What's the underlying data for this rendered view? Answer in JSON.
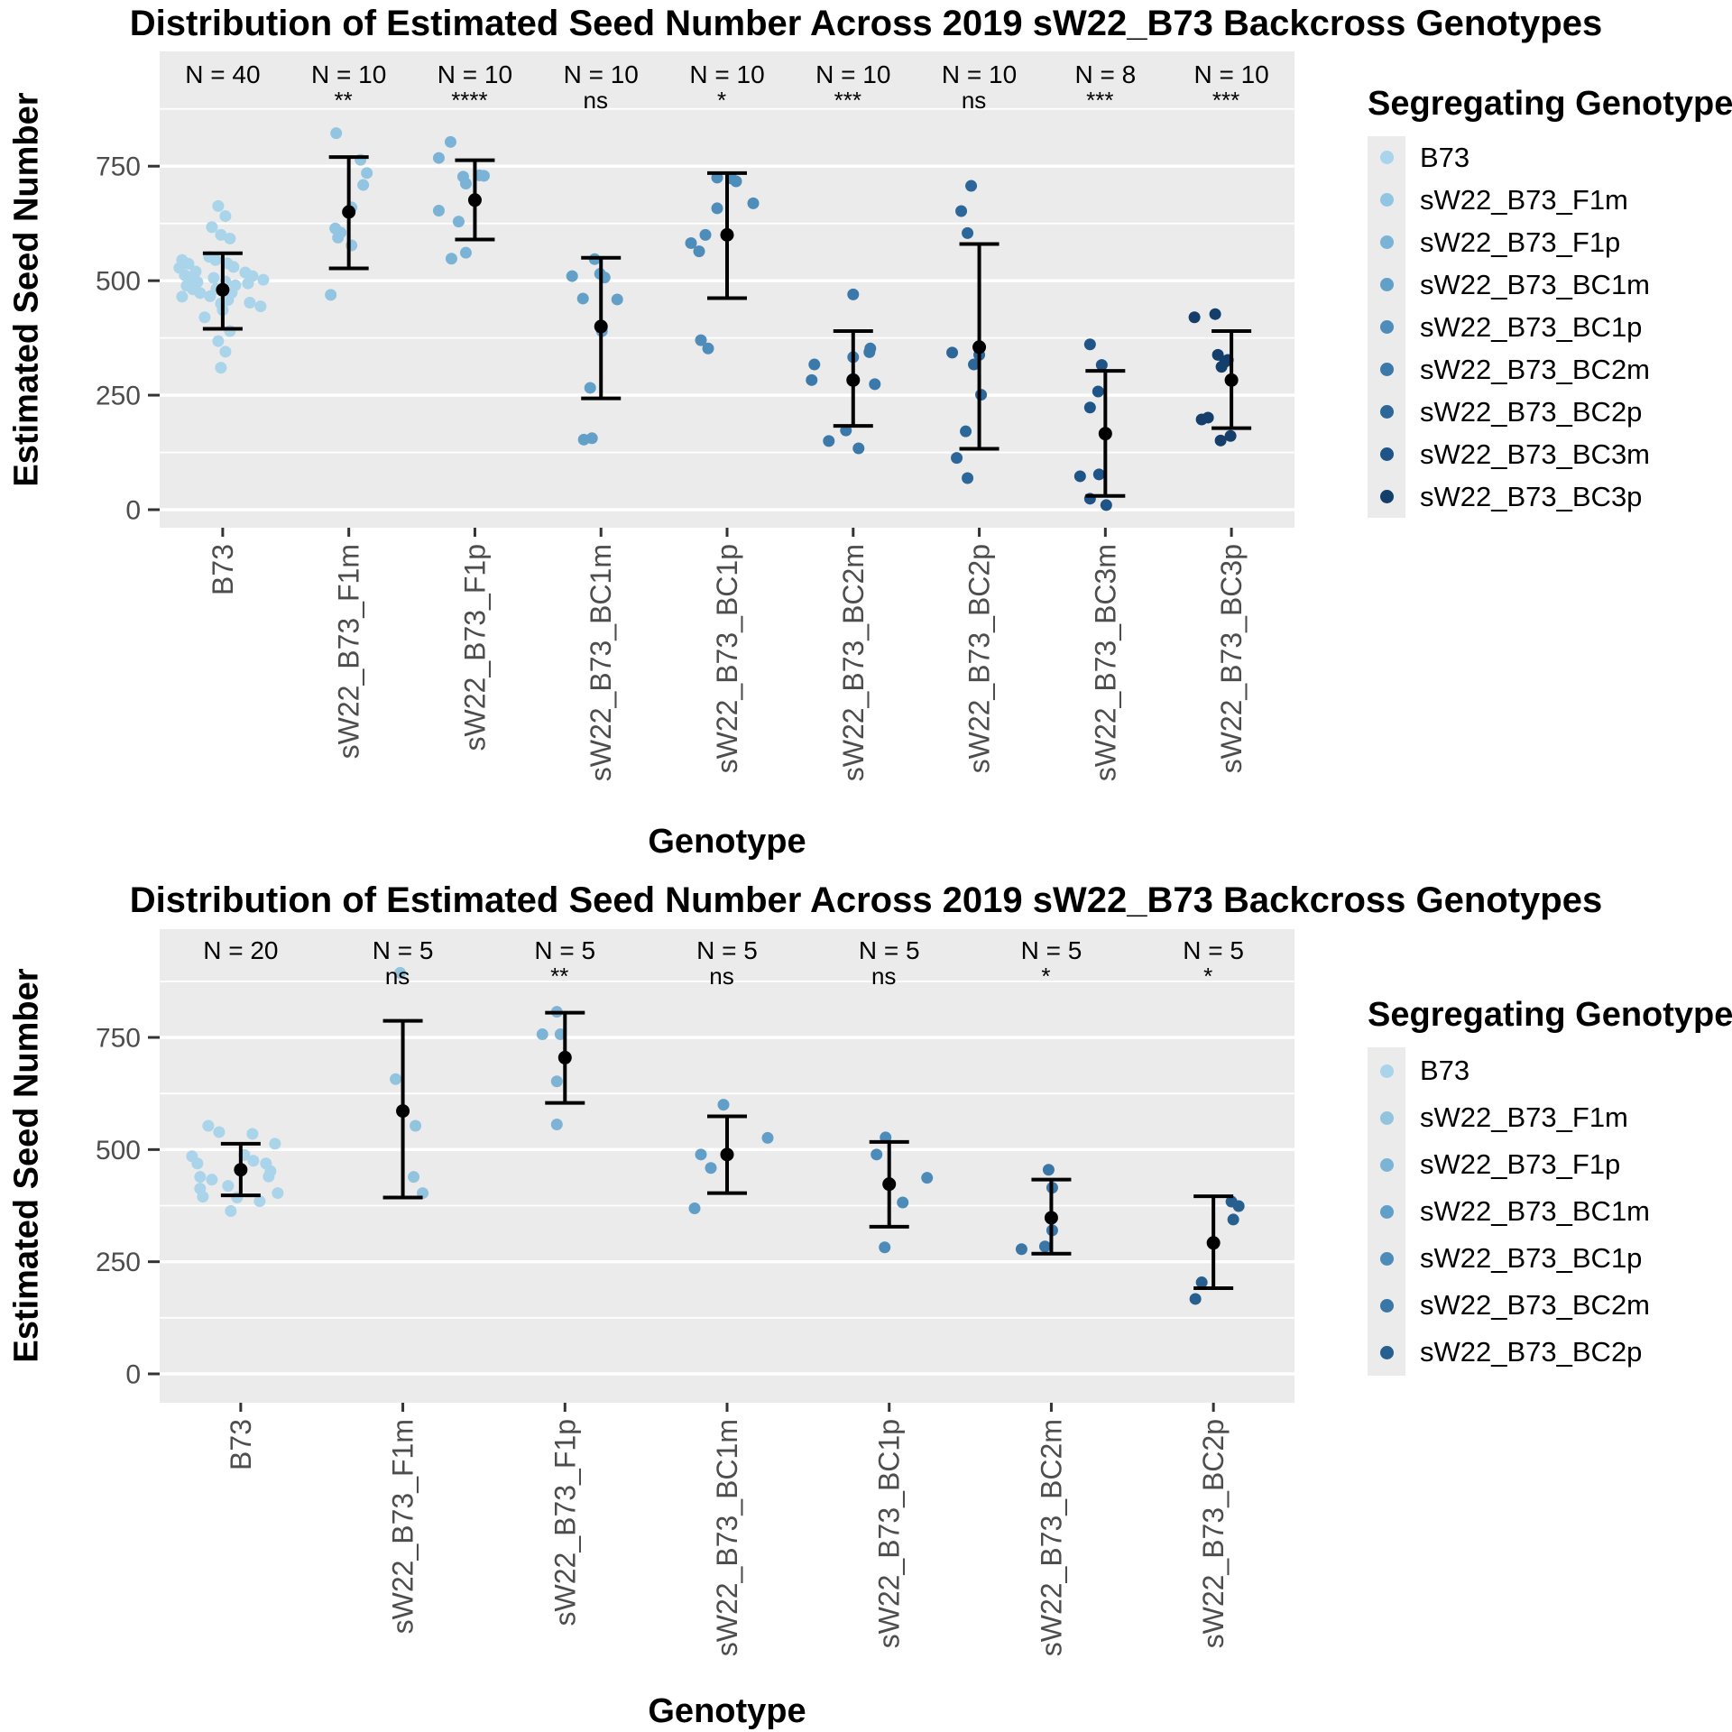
{
  "style": {
    "panel_background": "#EBEBEB",
    "grid_color": "#FFFFFF",
    "axis_text_color": "#4D4D4D",
    "error_bar_color": "#000000",
    "tick_color": "#333333"
  },
  "chart_data": [
    {
      "type": "scatter",
      "title": "Distribution of Estimated Seed Number Across 2019 sW22_B73 Backcross Genotypes",
      "xlabel": "Genotype",
      "ylabel": "Estimated Seed Number",
      "legend_title": "Segregating Genotype",
      "legend_position": "right",
      "grid": true,
      "y_ticks": [
        0,
        250,
        500,
        750
      ],
      "y_minor_ticks": [
        125,
        375,
        625,
        875
      ],
      "ylim": [
        -39,
        1000
      ],
      "categories": [
        "B73",
        "sW22_B73_F1m",
        "sW22_B73_F1p",
        "sW22_B73_BC1m",
        "sW22_B73_BC1p",
        "sW22_B73_BC2m",
        "sW22_B73_BC2p",
        "sW22_B73_BC3m",
        "sW22_B73_BC3p"
      ],
      "groups": [
        {
          "genotype": "B73",
          "color": "#A9D4EA",
          "n": 40,
          "n_label": "N = 40",
          "significance": "",
          "mean": 480,
          "upper": 560,
          "lower": 395,
          "points": [
            [
              -5,
              663
            ],
            [
              3,
              641
            ],
            [
              -12,
              617
            ],
            [
              -2,
              600
            ],
            [
              8,
              592
            ],
            [
              -15,
              552
            ],
            [
              -45,
              545
            ],
            [
              -8,
              545
            ],
            [
              -38,
              537
            ],
            [
              5,
              538
            ],
            [
              -48,
              528
            ],
            [
              12,
              530
            ],
            [
              -30,
              520
            ],
            [
              25,
              518
            ],
            [
              -42,
              512
            ],
            [
              33,
              510
            ],
            [
              -35,
              505
            ],
            [
              45,
              502
            ],
            [
              -28,
              497
            ],
            [
              28,
              494
            ],
            [
              -40,
              489
            ],
            [
              14,
              490
            ],
            [
              -33,
              481
            ],
            [
              10,
              474
            ],
            [
              -25,
              473
            ],
            [
              -7,
              482
            ],
            [
              -45,
              465
            ],
            [
              -14,
              466
            ],
            [
              6,
              458
            ],
            [
              -2,
              450
            ],
            [
              30,
              452
            ],
            [
              42,
              444
            ],
            [
              -10,
              506
            ],
            [
              3,
              498
            ],
            [
              0,
              436
            ],
            [
              -20,
              420
            ],
            [
              8,
              390
            ],
            [
              -5,
              368
            ],
            [
              3,
              345
            ],
            [
              -2,
              310
            ]
          ]
        },
        {
          "genotype": "sW22_B73_F1m",
          "color": "#92C5E1",
          "n": 10,
          "n_label": "N = 10",
          "significance": "**",
          "mean": 650,
          "upper": 770,
          "lower": 527,
          "points": [
            [
              -14,
              822
            ],
            [
              13,
              764
            ],
            [
              20,
              735
            ],
            [
              16,
              709
            ],
            [
              3,
              660
            ],
            [
              -15,
              614
            ],
            [
              -9,
              605
            ],
            [
              -12,
              594
            ],
            [
              3,
              577
            ],
            [
              -20,
              469
            ]
          ]
        },
        {
          "genotype": "sW22_B73_F1p",
          "color": "#7AB3D5",
          "n": 10,
          "n_label": "N = 10",
          "significance": "****",
          "mean": 676,
          "upper": 763,
          "lower": 590,
          "points": [
            [
              -27,
              803
            ],
            [
              -40,
              768
            ],
            [
              5,
              730
            ],
            [
              10,
              729
            ],
            [
              -13,
              727
            ],
            [
              -10,
              712
            ],
            [
              -40,
              653
            ],
            [
              -18,
              629
            ],
            [
              -10,
              561
            ],
            [
              -26,
              548
            ]
          ]
        },
        {
          "genotype": "sW22_B73_BC1m",
          "color": "#63A0C8",
          "n": 10,
          "n_label": "N = 10",
          "significance": "ns",
          "mean": 400,
          "upper": 550,
          "lower": 243,
          "points": [
            [
              -7,
              547
            ],
            [
              -1,
              515
            ],
            [
              -32,
              510
            ],
            [
              4,
              507
            ],
            [
              -20,
              461
            ],
            [
              18,
              459
            ],
            [
              1,
              390
            ],
            [
              -12,
              266
            ],
            [
              -10,
              156
            ],
            [
              -19,
              153
            ]
          ]
        },
        {
          "genotype": "sW22_B73_BC1p",
          "color": "#4E8CBA",
          "n": 10,
          "n_label": "N = 10",
          "significance": "*",
          "mean": 600,
          "upper": 735,
          "lower": 462,
          "points": [
            [
              -11,
              725
            ],
            [
              5,
              723
            ],
            [
              10,
              717
            ],
            [
              29,
              669
            ],
            [
              -11,
              658
            ],
            [
              -24,
              600
            ],
            [
              -40,
              582
            ],
            [
              -31,
              564
            ],
            [
              -29,
              370
            ],
            [
              -21,
              352
            ]
          ]
        },
        {
          "genotype": "sW22_B73_BC2m",
          "color": "#3C79AB",
          "n": 10,
          "n_label": "N = 10",
          "significance": "***",
          "mean": 283,
          "upper": 390,
          "lower": 183,
          "points": [
            [
              0,
              470
            ],
            [
              19,
              352
            ],
            [
              18,
              344
            ],
            [
              0,
              333
            ],
            [
              -43,
              317
            ],
            [
              -46,
              283
            ],
            [
              24,
              274
            ],
            [
              -8,
              173
            ],
            [
              -27,
              150
            ],
            [
              6,
              134
            ]
          ]
        },
        {
          "genotype": "sW22_B73_BC2p",
          "color": "#2D679A",
          "n": 10,
          "n_label": "N = 10",
          "significance": "ns",
          "mean": 355,
          "upper": 580,
          "lower": 133,
          "points": [
            [
              -9,
              707
            ],
            [
              -20,
              652
            ],
            [
              -13,
              604
            ],
            [
              -30,
              343
            ],
            [
              0,
              338
            ],
            [
              -6,
              317
            ],
            [
              2,
              251
            ],
            [
              -15,
              171
            ],
            [
              -25,
              113
            ],
            [
              -13,
              69
            ]
          ]
        },
        {
          "genotype": "sW22_B73_BC3m",
          "color": "#1F5488",
          "n": 8,
          "n_label": "N = 8",
          "significance": "***",
          "mean": 166,
          "upper": 303,
          "lower": 30,
          "points": [
            [
              -17,
              361
            ],
            [
              -4,
              316
            ],
            [
              -8,
              258
            ],
            [
              -17,
              223
            ],
            [
              -7,
              77
            ],
            [
              -28,
              73
            ],
            [
              -17,
              24
            ],
            [
              1,
              10
            ]
          ]
        },
        {
          "genotype": "sW22_B73_BC3p",
          "color": "#153F6B",
          "n": 10,
          "n_label": "N = 10",
          "significance": "***",
          "mean": 283,
          "upper": 390,
          "lower": 178,
          "points": [
            [
              -18,
              427
            ],
            [
              -41,
              420
            ],
            [
              -15,
              338
            ],
            [
              -4,
              327
            ],
            [
              -7,
              323
            ],
            [
              -11,
              312
            ],
            [
              -26,
              201
            ],
            [
              -33,
              197
            ],
            [
              -1,
              161
            ],
            [
              -12,
              151
            ]
          ]
        }
      ]
    },
    {
      "type": "scatter",
      "title": "Distribution of Estimated Seed Number Across 2019 sW22_B73 Backcross Genotypes",
      "xlabel": "Genotype",
      "ylabel": "Estimated Seed Number",
      "legend_title": "Segregating Genotype",
      "legend_position": "right",
      "grid": true,
      "y_ticks": [
        0,
        250,
        500,
        750
      ],
      "y_minor_ticks": [
        125,
        375,
        625,
        875
      ],
      "ylim": [
        -64,
        991
      ],
      "categories": [
        "B73",
        "sW22_B73_F1m",
        "sW22_B73_F1p",
        "sW22_B73_BC1m",
        "sW22_B73_BC1p",
        "sW22_B73_BC2m",
        "sW22_B73_BC2p"
      ],
      "groups": [
        {
          "genotype": "B73",
          "color": "#A9D4EA",
          "n": 20,
          "n_label": "N = 20",
          "significance": "",
          "mean": 455,
          "upper": 513,
          "lower": 398,
          "points": [
            [
              -36,
              553
            ],
            [
              -24,
              539
            ],
            [
              13,
              535
            ],
            [
              38,
              513
            ],
            [
              4,
              488
            ],
            [
              -54,
              485
            ],
            [
              14,
              475
            ],
            [
              -48,
              469
            ],
            [
              28,
              469
            ],
            [
              33,
              452
            ],
            [
              31,
              440
            ],
            [
              -45,
              439
            ],
            [
              -32,
              433
            ],
            [
              -14,
              419
            ],
            [
              -45,
              413
            ],
            [
              41,
              403
            ],
            [
              -42,
              395
            ],
            [
              -4,
              393
            ],
            [
              21,
              385
            ],
            [
              -11,
              363
            ]
          ]
        },
        {
          "genotype": "sW22_B73_F1m",
          "color": "#92C4DE",
          "n": 5,
          "n_label": "N = 5",
          "significance": "ns",
          "mean": 586,
          "upper": 787,
          "lower": 393,
          "points": [
            [
              -3,
              894
            ],
            [
              -8,
              657
            ],
            [
              14,
              553
            ],
            [
              12,
              439
            ],
            [
              22,
              403
            ]
          ]
        },
        {
          "genotype": "sW22_B73_F1p",
          "color": "#7DB4D6",
          "n": 5,
          "n_label": "N = 5",
          "significance": "**",
          "mean": 705,
          "upper": 805,
          "lower": 604,
          "points": [
            [
              -9,
              807
            ],
            [
              -25,
              757
            ],
            [
              -5,
              757
            ],
            [
              -9,
              652
            ],
            [
              -9,
              556
            ]
          ]
        },
        {
          "genotype": "sW22_B73_BC1m",
          "color": "#619FC9",
          "n": 5,
          "n_label": "N = 5",
          "significance": "ns",
          "mean": 489,
          "upper": 574,
          "lower": 403,
          "points": [
            [
              -4,
              600
            ],
            [
              45,
              526
            ],
            [
              -29,
              489
            ],
            [
              -18,
              459
            ],
            [
              -36,
              369
            ]
          ]
        },
        {
          "genotype": "sW22_B73_BC1p",
          "color": "#4D8BB9",
          "n": 5,
          "n_label": "N = 5",
          "significance": "ns",
          "mean": 423,
          "upper": 517,
          "lower": 328,
          "points": [
            [
              -4,
              527
            ],
            [
              -14,
              489
            ],
            [
              42,
              437
            ],
            [
              15,
              382
            ],
            [
              -5,
              282
            ]
          ]
        },
        {
          "genotype": "sW22_B73_BC2m",
          "color": "#3A77A6",
          "n": 5,
          "n_label": "N = 5",
          "significance": "*",
          "mean": 348,
          "upper": 433,
          "lower": 268,
          "points": [
            [
              -3,
              455
            ],
            [
              1,
              415
            ],
            [
              1,
              320
            ],
            [
              -7,
              284
            ],
            [
              -33,
              278
            ]
          ]
        },
        {
          "genotype": "sW22_B73_BC2p",
          "color": "#27608F",
          "n": 5,
          "n_label": "N = 5",
          "significance": "*",
          "mean": 292,
          "upper": 396,
          "lower": 191,
          "points": [
            [
              20,
              384
            ],
            [
              28,
              374
            ],
            [
              22,
              344
            ],
            [
              -13,
              204
            ],
            [
              -20,
              167
            ]
          ]
        }
      ]
    }
  ]
}
